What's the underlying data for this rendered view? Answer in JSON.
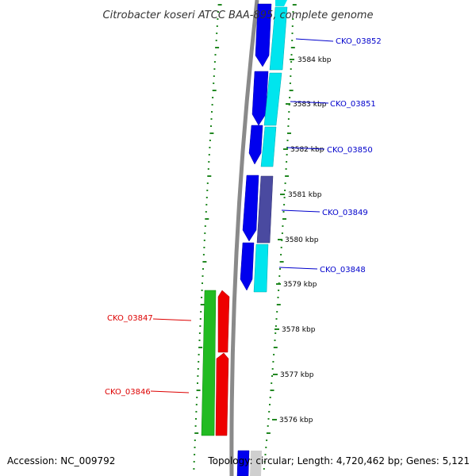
{
  "title": "Citrobacter koseri ATCC BAA-895, complete genome",
  "footer": {
    "accession": "Accession: NC_009792",
    "summary": "Topology: circular; Length: 4,720,462 bp; Genes: 5,121"
  },
  "colors": {
    "backbone": "#7a7a7a",
    "forward_cds": "#0000ee",
    "cyan_cds": "#00e5ee",
    "slate_cds": "#4a4aa0",
    "green_cds": "#22bb22",
    "red_cds": "#ee0000",
    "label_blue": "#0000cc",
    "label_red": "#dd0000",
    "dot_track": "#228822"
  },
  "scale_ticks": [
    "3584 kbp",
    "3583 kbp",
    "3582 kbp",
    "3581 kbp",
    "3580 kbp",
    "3579 kbp",
    "3578 kbp",
    "3577 kbp",
    "3576 kbp"
  ],
  "gene_labels": [
    {
      "text": "CKO_03852",
      "strand": "plus"
    },
    {
      "text": "CKO_03851",
      "strand": "plus"
    },
    {
      "text": "CKO_03850",
      "strand": "plus"
    },
    {
      "text": "CKO_03849",
      "strand": "plus"
    },
    {
      "text": "CKO_03848",
      "strand": "plus"
    },
    {
      "text": "CKO_03847",
      "strand": "minus"
    },
    {
      "text": "CKO_03846",
      "strand": "minus"
    }
  ]
}
